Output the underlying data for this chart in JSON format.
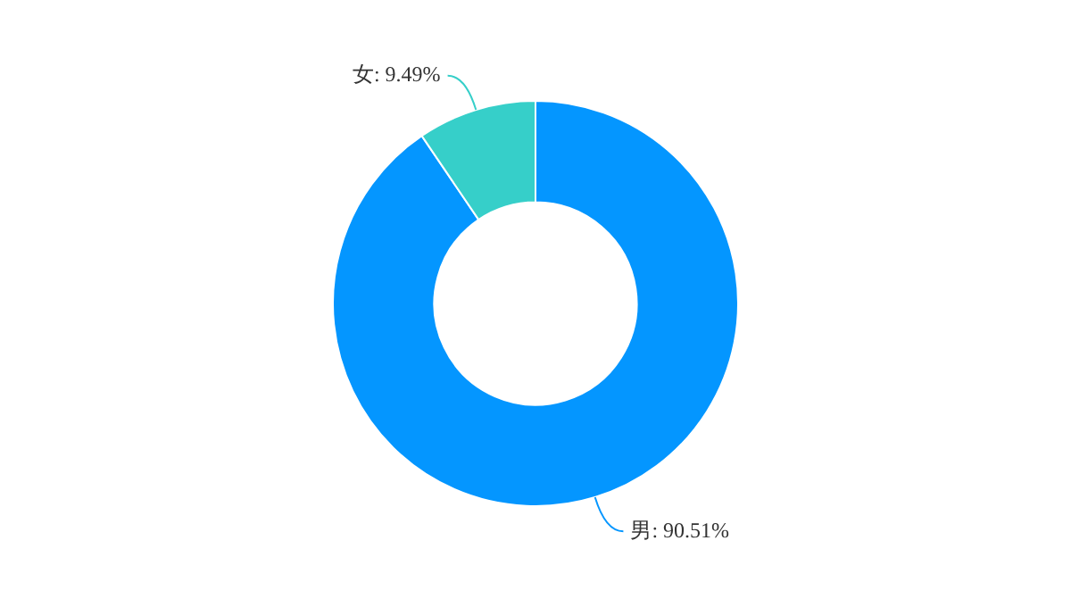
{
  "chart_data": {
    "type": "donut",
    "categories": [
      "男",
      "女"
    ],
    "values": [
      90.51,
      9.49
    ],
    "colors": [
      "#0496ff",
      "#36cfc9"
    ],
    "value_labels": [
      "90.51%",
      "9.49%"
    ],
    "legend": false
  }
}
